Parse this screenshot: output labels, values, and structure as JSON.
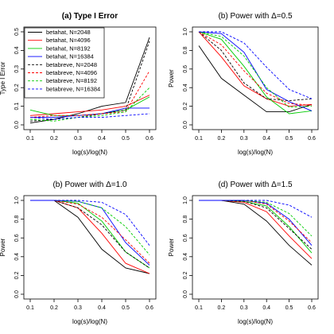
{
  "chart_data": [
    {
      "type": "line",
      "title": "(a) Type I Error",
      "xlabel": "log(s)/log(N)",
      "ylabel": "Type I Error",
      "xlim": [
        0.1,
        0.6
      ],
      "ylim": [
        0.0,
        0.5
      ],
      "x_ticks": [
        "0.1",
        "0.2",
        "0.3",
        "0.4",
        "0.5",
        "0.6"
      ],
      "y_ticks": [
        "0.0",
        "0.1",
        "0.2",
        "0.3",
        "0.4",
        "0.5"
      ],
      "x": [
        0.1,
        0.2,
        0.3,
        0.4,
        0.5,
        0.6
      ],
      "legend": "top-left",
      "series": [
        {
          "name": "betahat, N=2048",
          "color": "#000000",
          "dash": "solid",
          "values": [
            0.01,
            0.03,
            0.06,
            0.1,
            0.12,
            0.47
          ]
        },
        {
          "name": "betahat, N=4096",
          "color": "#ff0000",
          "dash": "solid",
          "values": [
            0.05,
            0.06,
            0.07,
            0.08,
            0.1,
            0.16
          ]
        },
        {
          "name": "betahat, N=8192",
          "color": "#00cc00",
          "dash": "solid",
          "values": [
            0.08,
            0.05,
            0.05,
            0.06,
            0.08,
            0.15
          ]
        },
        {
          "name": "betahat, N=16384",
          "color": "#0000ff",
          "dash": "solid",
          "values": [
            0.04,
            0.04,
            0.05,
            0.06,
            0.09,
            0.09
          ]
        },
        {
          "name": "betabreve, N=2048",
          "color": "#000000",
          "dash": "dashed",
          "values": [
            0.02,
            0.03,
            0.04,
            0.06,
            0.08,
            0.45
          ]
        },
        {
          "name": "betabreve, N=4096",
          "color": "#ff0000",
          "dash": "dashed",
          "values": [
            0.04,
            0.05,
            0.05,
            0.06,
            0.07,
            0.29
          ]
        },
        {
          "name": "betabreve, N=8192",
          "color": "#00cc00",
          "dash": "dashed",
          "values": [
            0.03,
            0.02,
            0.04,
            0.05,
            0.07,
            0.2
          ]
        },
        {
          "name": "betabreve, N=16384",
          "color": "#0000ff",
          "dash": "dashed",
          "values": [
            0.04,
            0.03,
            0.04,
            0.04,
            0.05,
            0.06
          ]
        }
      ]
    },
    {
      "type": "line",
      "title": "(b) Power with Δ=0.5",
      "xlabel": "log(s)/log(N)",
      "ylabel": "Power",
      "xlim": [
        0.1,
        0.6
      ],
      "ylim": [
        0.0,
        1.0
      ],
      "x_ticks": [
        "0.1",
        "0.2",
        "0.3",
        "0.4",
        "0.5",
        "0.6"
      ],
      "y_ticks": [
        "0.0",
        "0.2",
        "0.4",
        "0.6",
        "0.8",
        "1.0"
      ],
      "x": [
        0.1,
        0.2,
        0.3,
        0.4,
        0.5,
        0.6
      ],
      "series": [
        {
          "name": "betahat, N=2048",
          "color": "#000000",
          "dash": "solid",
          "values": [
            0.85,
            0.5,
            0.32,
            0.14,
            0.14,
            0.22
          ]
        },
        {
          "name": "betahat, N=4096",
          "color": "#ff0000",
          "dash": "solid",
          "values": [
            1.0,
            0.73,
            0.42,
            0.28,
            0.2,
            0.22
          ]
        },
        {
          "name": "betahat, N=8192",
          "color": "#00cc00",
          "dash": "solid",
          "values": [
            1.0,
            0.92,
            0.63,
            0.3,
            0.12,
            0.15
          ]
        },
        {
          "name": "betahat, N=16384",
          "color": "#0000ff",
          "dash": "solid",
          "values": [
            1.0,
            0.98,
            0.78,
            0.38,
            0.25,
            0.15
          ]
        },
        {
          "name": "betabreve, N=2048",
          "color": "#000000",
          "dash": "dashed",
          "values": [
            1.0,
            0.8,
            0.45,
            0.28,
            0.26,
            0.28
          ]
        },
        {
          "name": "betabreve, N=4096",
          "color": "#ff0000",
          "dash": "dashed",
          "values": [
            1.0,
            0.86,
            0.58,
            0.34,
            0.23,
            0.21
          ]
        },
        {
          "name": "betabreve, N=8192",
          "color": "#00cc00",
          "dash": "dashed",
          "values": [
            1.0,
            0.95,
            0.74,
            0.4,
            0.19,
            0.2
          ]
        },
        {
          "name": "betabreve, N=16384",
          "color": "#0000ff",
          "dash": "dashed",
          "values": [
            1.0,
            1.0,
            0.88,
            0.62,
            0.38,
            0.28
          ]
        }
      ]
    },
    {
      "type": "line",
      "title": "(b) Power with Δ=1.0",
      "xlabel": "log(s)/log(N)",
      "ylabel": "Power",
      "xlim": [
        0.1,
        0.6
      ],
      "ylim": [
        0.0,
        1.0
      ],
      "x_ticks": [
        "0.1",
        "0.2",
        "0.3",
        "0.4",
        "0.5",
        "0.6"
      ],
      "y_ticks": [
        "0.0",
        "0.2",
        "0.4",
        "0.6",
        "0.8",
        "1.0"
      ],
      "x": [
        0.1,
        0.2,
        0.3,
        0.4,
        0.5,
        0.6
      ],
      "series": [
        {
          "name": "betahat, N=2048",
          "color": "#000000",
          "dash": "solid",
          "values": [
            1.0,
            1.0,
            0.82,
            0.48,
            0.28,
            0.22
          ]
        },
        {
          "name": "betahat, N=4096",
          "color": "#ff0000",
          "dash": "solid",
          "values": [
            1.0,
            1.0,
            0.92,
            0.65,
            0.33,
            0.22
          ]
        },
        {
          "name": "betahat, N=8192",
          "color": "#00cc00",
          "dash": "solid",
          "values": [
            1.0,
            1.0,
            0.97,
            0.78,
            0.45,
            0.28
          ]
        },
        {
          "name": "betahat, N=16384",
          "color": "#0000ff",
          "dash": "solid",
          "values": [
            1.0,
            1.0,
            0.99,
            0.92,
            0.55,
            0.31
          ]
        },
        {
          "name": "betabreve, N=2048",
          "color": "#000000",
          "dash": "dashed",
          "values": [
            1.0,
            1.0,
            0.92,
            0.74,
            0.45,
            0.28
          ]
        },
        {
          "name": "betabreve, N=4096",
          "color": "#ff0000",
          "dash": "dashed",
          "values": [
            1.0,
            1.0,
            0.96,
            0.82,
            0.58,
            0.33
          ]
        },
        {
          "name": "betabreve, N=8192",
          "color": "#00cc00",
          "dash": "dashed",
          "values": [
            1.0,
            1.0,
            0.99,
            0.92,
            0.72,
            0.42
          ]
        },
        {
          "name": "betabreve, N=16384",
          "color": "#0000ff",
          "dash": "dashed",
          "values": [
            1.0,
            1.0,
            1.0,
            0.98,
            0.85,
            0.52
          ]
        }
      ]
    },
    {
      "type": "line",
      "title": "(d) Power with Δ=1.5",
      "xlabel": "log(s)/log(N)",
      "ylabel": "Power",
      "xlim": [
        0.1,
        0.6
      ],
      "ylim": [
        0.0,
        1.0
      ],
      "x_ticks": [
        "0.1",
        "0.2",
        "0.3",
        "0.4",
        "0.5",
        "0.6"
      ],
      "y_ticks": [
        "0.0",
        "0.2",
        "0.4",
        "0.6",
        "0.8",
        "1.0"
      ],
      "x": [
        0.1,
        0.2,
        0.3,
        0.4,
        0.5,
        0.6
      ],
      "series": [
        {
          "name": "betahat, N=2048",
          "color": "#000000",
          "dash": "solid",
          "values": [
            1.0,
            1.0,
            0.96,
            0.78,
            0.52,
            0.31
          ]
        },
        {
          "name": "betahat, N=4096",
          "color": "#ff0000",
          "dash": "solid",
          "values": [
            1.0,
            1.0,
            0.98,
            0.88,
            0.62,
            0.38
          ]
        },
        {
          "name": "betahat, N=8192",
          "color": "#00cc00",
          "dash": "solid",
          "values": [
            1.0,
            1.0,
            0.99,
            0.94,
            0.72,
            0.44
          ]
        },
        {
          "name": "betahat, N=16384",
          "color": "#0000ff",
          "dash": "solid",
          "values": [
            1.0,
            1.0,
            1.0,
            0.97,
            0.8,
            0.52
          ]
        },
        {
          "name": "betabreve, N=2048",
          "color": "#000000",
          "dash": "dashed",
          "values": [
            1.0,
            1.0,
            0.99,
            0.92,
            0.7,
            0.48
          ]
        },
        {
          "name": "betabreve, N=4096",
          "color": "#ff0000",
          "dash": "dashed",
          "values": [
            1.0,
            1.0,
            1.0,
            0.96,
            0.78,
            0.55
          ]
        },
        {
          "name": "betabreve, N=8192",
          "color": "#00cc00",
          "dash": "dashed",
          "values": [
            1.0,
            1.0,
            1.0,
            0.98,
            0.86,
            0.62
          ]
        },
        {
          "name": "betabreve, N=16384",
          "color": "#0000ff",
          "dash": "dashed",
          "values": [
            1.0,
            1.0,
            1.0,
            1.0,
            0.95,
            0.82
          ]
        }
      ]
    }
  ]
}
